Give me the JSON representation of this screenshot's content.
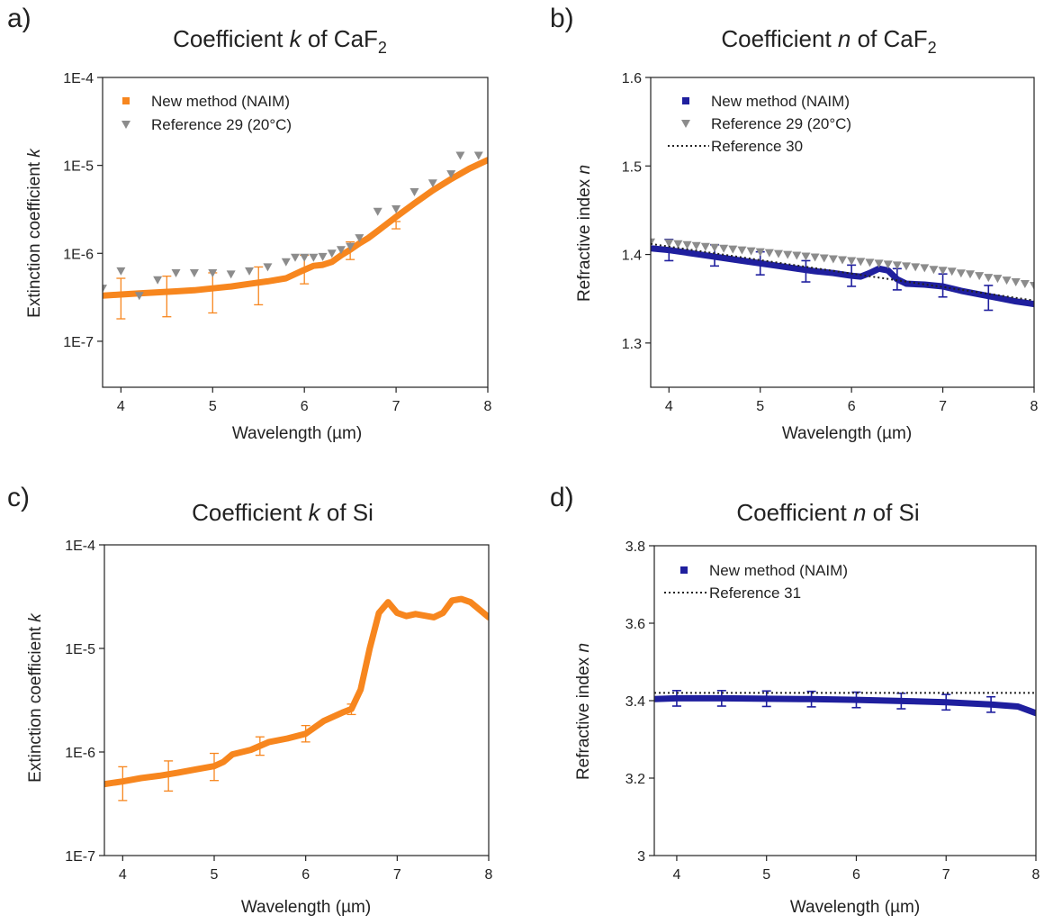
{
  "figure": {
    "panels": [
      {
        "letter": "a)",
        "title_prefix": "Coefficient ",
        "title_var": "k",
        "title_mid": " of CaF",
        "title_sub": "2",
        "ylabel_prefix": "Extinction coefficient ",
        "ylabel_var": "k",
        "xlabel": "Wavelength (µm)"
      },
      {
        "letter": "b)",
        "title_prefix": "Coefficient ",
        "title_var": "n",
        "title_mid": " of CaF",
        "title_sub": "2",
        "ylabel_prefix": "Refractive index ",
        "ylabel_var": "n",
        "xlabel": "Wavelength (µm)"
      },
      {
        "letter": "c)",
        "title_prefix": "Coefficient ",
        "title_var": "k",
        "title_mid": " of Si",
        "title_sub": "",
        "ylabel_prefix": "Extinction coefficient ",
        "ylabel_var": "k",
        "xlabel": "Wavelength (µm)"
      },
      {
        "letter": "d)",
        "title_prefix": "Coefficient ",
        "title_var": "n",
        "title_mid": " of Si",
        "title_sub": "",
        "ylabel_prefix": "Refractive index ",
        "ylabel_var": "n",
        "xlabel": "Wavelength (µm)"
      }
    ]
  },
  "chart_data": [
    {
      "type": "line",
      "scale_y": "log",
      "xlim": [
        3.8,
        8.0
      ],
      "ylim": [
        3e-08,
        0.0001
      ],
      "xticks": [
        4,
        5,
        6,
        7,
        8
      ],
      "xtick_labels": [
        "4",
        "5",
        "6",
        "7",
        "8"
      ],
      "yticks": [
        1e-07,
        1e-06,
        1e-05,
        0.0001
      ],
      "ytick_labels": [
        "1E-7",
        "1E-6",
        "1E-5",
        "1E-4"
      ],
      "legend_position": "top-left",
      "series": [
        {
          "name": "New method (NAIM)",
          "style": "thick-line",
          "color": "#F7861E",
          "x": [
            3.8,
            4.0,
            4.2,
            4.4,
            4.6,
            4.8,
            5.0,
            5.2,
            5.4,
            5.6,
            5.8,
            6.0,
            6.1,
            6.2,
            6.3,
            6.4,
            6.5,
            6.6,
            6.7,
            6.8,
            7.0,
            7.2,
            7.4,
            7.6,
            7.8,
            8.0
          ],
          "y": [
            3.3e-07,
            3.4e-07,
            3.5e-07,
            3.6e-07,
            3.7e-07,
            3.8e-07,
            4e-07,
            4.2e-07,
            4.5e-07,
            4.8e-07,
            5.2e-07,
            6.5e-07,
            7.2e-07,
            7.4e-07,
            8e-07,
            9.5e-07,
            1.1e-06,
            1.3e-06,
            1.5e-06,
            1.8e-06,
            2.6e-06,
            3.7e-06,
            5.2e-06,
            7e-06,
            9.2e-06,
            1.15e-05
          ]
        },
        {
          "name": "Reference 29  (20°C)",
          "style": "triangle-markers",
          "color": "#8C8C8C",
          "x": [
            3.8,
            4.0,
            4.2,
            4.4,
            4.6,
            4.8,
            5.0,
            5.2,
            5.4,
            5.6,
            5.8,
            5.9,
            6.0,
            6.1,
            6.2,
            6.3,
            6.4,
            6.5,
            6.6,
            6.8,
            7.0,
            7.2,
            7.4,
            7.6,
            7.7,
            7.9
          ],
          "y": [
            4e-07,
            6.3e-07,
            3.3e-07,
            5e-07,
            6e-07,
            6e-07,
            6e-07,
            5.8e-07,
            6.3e-07,
            7e-07,
            8e-07,
            9e-07,
            9e-07,
            9e-07,
            9.2e-07,
            1e-06,
            1.1e-06,
            1.2e-06,
            1.5e-06,
            3e-06,
            3.2e-06,
            5e-06,
            6.3e-06,
            8e-06,
            1.3e-05,
            1.3e-05
          ]
        }
      ],
      "errorbars": {
        "x": [
          4.0,
          4.5,
          5.0,
          5.5,
          6.0,
          6.5,
          7.0
        ],
        "low": [
          1.8e-07,
          1.9e-07,
          2.1e-07,
          2.6e-07,
          4.5e-07,
          8.5e-07,
          1.9e-06
        ],
        "high": [
          5.2e-07,
          5.5e-07,
          6e-07,
          7e-07,
          9.5e-07,
          1.35e-06,
          2.3e-06
        ]
      }
    },
    {
      "type": "line",
      "scale_y": "linear",
      "xlim": [
        3.8,
        8.0
      ],
      "ylim": [
        1.25,
        1.6
      ],
      "xticks": [
        4,
        5,
        6,
        7,
        8
      ],
      "xtick_labels": [
        "4",
        "5",
        "6",
        "7",
        "8"
      ],
      "yticks": [
        1.3,
        1.4,
        1.5,
        1.6
      ],
      "ytick_labels": [
        "1.3",
        "1.4",
        "1.5",
        "1.6"
      ],
      "legend_position": "top-left",
      "series": [
        {
          "name": "New method (NAIM)",
          "style": "thick-line",
          "color": "#1F1F9E",
          "x": [
            3.8,
            4.0,
            4.2,
            4.4,
            4.6,
            4.8,
            5.0,
            5.2,
            5.4,
            5.6,
            5.8,
            6.0,
            6.1,
            6.2,
            6.3,
            6.4,
            6.5,
            6.6,
            6.8,
            7.0,
            7.2,
            7.4,
            7.6,
            7.8,
            8.0
          ],
          "y": [
            1.407,
            1.405,
            1.402,
            1.399,
            1.396,
            1.393,
            1.39,
            1.387,
            1.384,
            1.381,
            1.379,
            1.376,
            1.375,
            1.379,
            1.384,
            1.382,
            1.372,
            1.367,
            1.366,
            1.364,
            1.359,
            1.355,
            1.351,
            1.347,
            1.344
          ]
        },
        {
          "name": "Reference 29 (20°C)",
          "style": "triangle-markers",
          "color": "#8C8C8C",
          "x": [
            3.8,
            4.0,
            4.1,
            4.2,
            4.3,
            4.4,
            4.5,
            4.6,
            4.7,
            4.8,
            4.9,
            5.0,
            5.1,
            5.2,
            5.3,
            5.4,
            5.5,
            5.6,
            5.7,
            5.8,
            5.9,
            6.0,
            6.1,
            6.2,
            6.3,
            6.4,
            6.5,
            6.6,
            6.7,
            6.8,
            6.9,
            7.0,
            7.1,
            7.2,
            7.3,
            7.4,
            7.5,
            7.6,
            7.7,
            7.8,
            7.9,
            8.0
          ],
          "y": [
            1.414,
            1.413,
            1.412,
            1.411,
            1.41,
            1.409,
            1.408,
            1.407,
            1.406,
            1.405,
            1.404,
            1.403,
            1.402,
            1.401,
            1.4,
            1.399,
            1.398,
            1.397,
            1.396,
            1.395,
            1.394,
            1.393,
            1.392,
            1.391,
            1.39,
            1.389,
            1.388,
            1.387,
            1.386,
            1.385,
            1.383,
            1.382,
            1.381,
            1.379,
            1.378,
            1.376,
            1.374,
            1.373,
            1.371,
            1.369,
            1.367,
            1.365
          ]
        },
        {
          "name": "Reference 30",
          "style": "dotted-line",
          "color": "#222222",
          "x": [
            3.8,
            8.0
          ],
          "y": [
            1.412,
            1.348
          ]
        }
      ],
      "errorbars": {
        "x": [
          4.0,
          4.5,
          5.0,
          5.5,
          6.0,
          6.5,
          7.0,
          7.5
        ],
        "low": [
          1.393,
          1.387,
          1.377,
          1.369,
          1.364,
          1.36,
          1.352,
          1.337
        ],
        "high": [
          1.417,
          1.411,
          1.403,
          1.393,
          1.388,
          1.384,
          1.378,
          1.365
        ]
      }
    },
    {
      "type": "line",
      "scale_y": "log",
      "xlim": [
        3.8,
        8.0
      ],
      "ylim": [
        1e-07,
        0.0001
      ],
      "xticks": [
        4,
        5,
        6,
        7,
        8
      ],
      "xtick_labels": [
        "4",
        "5",
        "6",
        "7",
        "8"
      ],
      "yticks": [
        1e-07,
        1e-06,
        1e-05,
        0.0001
      ],
      "ytick_labels": [
        "1E-7",
        "1E-6",
        "1E-5",
        "1E-4"
      ],
      "legend_position": "none",
      "series": [
        {
          "name": "",
          "style": "thick-line",
          "color": "#F7861E",
          "x": [
            3.8,
            4.0,
            4.2,
            4.4,
            4.6,
            4.8,
            5.0,
            5.1,
            5.2,
            5.4,
            5.6,
            5.8,
            6.0,
            6.2,
            6.4,
            6.5,
            6.6,
            6.7,
            6.8,
            6.9,
            7.0,
            7.1,
            7.2,
            7.4,
            7.5,
            7.6,
            7.7,
            7.8,
            8.0
          ],
          "y": [
            4.9e-07,
            5.2e-07,
            5.6e-07,
            5.9e-07,
            6.3e-07,
            6.8e-07,
            7.3e-07,
            8e-07,
            9.5e-07,
            1.05e-06,
            1.25e-06,
            1.35e-06,
            1.5e-06,
            2e-06,
            2.4e-06,
            2.6e-06,
            4e-06,
            1e-05,
            2.2e-05,
            2.8e-05,
            2.2e-05,
            2.05e-05,
            2.15e-05,
            2e-05,
            2.2e-05,
            2.9e-05,
            3e-05,
            2.8e-05,
            2e-05
          ]
        }
      ],
      "errorbars": {
        "x": [
          4.0,
          4.5,
          5.0,
          5.5,
          6.0,
          6.5
        ],
        "low": [
          3.4e-07,
          4.2e-07,
          5.3e-07,
          9.3e-07,
          1.25e-06,
          2.3e-06
        ],
        "high": [
          7.2e-07,
          8.2e-07,
          9.7e-07,
          1.4e-06,
          1.8e-06,
          2.9e-06
        ]
      }
    },
    {
      "type": "line",
      "scale_y": "linear",
      "xlim": [
        3.75,
        8.0
      ],
      "ylim": [
        3.0,
        3.8
      ],
      "xticks": [
        4,
        5,
        6,
        7,
        8
      ],
      "xtick_labels": [
        "4",
        "5",
        "6",
        "7",
        "8"
      ],
      "yticks": [
        3.0,
        3.2,
        3.4,
        3.6,
        3.8
      ],
      "ytick_labels": [
        "3",
        "3.2",
        "3.4",
        "3.6",
        "3.8"
      ],
      "legend_position": "top-left",
      "series": [
        {
          "name": "New method (NAIM)",
          "style": "thick-line",
          "color": "#1F1F9E",
          "x": [
            3.75,
            4.0,
            4.5,
            5.0,
            5.5,
            6.0,
            6.5,
            7.0,
            7.5,
            7.8,
            8.0
          ],
          "y": [
            3.404,
            3.406,
            3.406,
            3.405,
            3.404,
            3.402,
            3.399,
            3.396,
            3.39,
            3.385,
            3.368
          ]
        },
        {
          "name": "Reference 31",
          "style": "dotted-line",
          "color": "#222222",
          "x": [
            3.75,
            8.0
          ],
          "y": [
            3.42,
            3.42
          ]
        }
      ],
      "errorbars": {
        "x": [
          4.0,
          4.5,
          5.0,
          5.5,
          6.0,
          6.5,
          7.0,
          7.5
        ],
        "low": [
          3.386,
          3.386,
          3.385,
          3.384,
          3.382,
          3.379,
          3.376,
          3.37
        ],
        "high": [
          3.426,
          3.426,
          3.425,
          3.424,
          3.422,
          3.419,
          3.416,
          3.41
        ]
      }
    }
  ]
}
